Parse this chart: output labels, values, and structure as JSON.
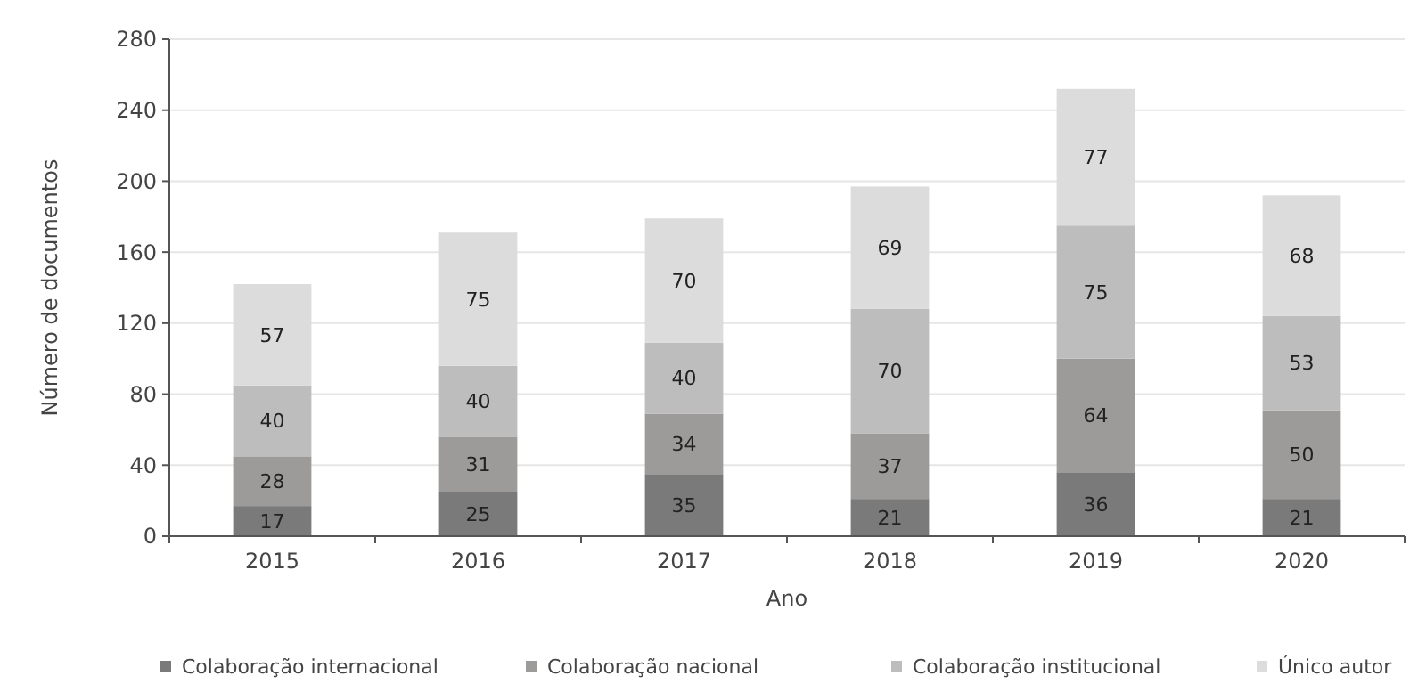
{
  "chart_data": {
    "type": "bar",
    "stacked": true,
    "xlabel": "Ano",
    "ylabel": "Número de documentos",
    "categories": [
      "2015",
      "2016",
      "2017",
      "2018",
      "2019",
      "2020"
    ],
    "series": [
      {
        "name": "Colaboração internacional",
        "color": "#7a7a7a",
        "values": [
          17,
          25,
          35,
          21,
          36,
          21
        ]
      },
      {
        "name": "Colaboração nacional",
        "color": "#9d9b99",
        "values": [
          28,
          31,
          34,
          37,
          64,
          50
        ]
      },
      {
        "name": "Colaboração institucional",
        "color": "#bebdbd",
        "values": [
          40,
          40,
          40,
          70,
          75,
          53
        ]
      },
      {
        "name": "Único autor",
        "color": "#dcdcdc",
        "values": [
          57,
          75,
          70,
          69,
          77,
          68
        ]
      }
    ],
    "ylim": [
      0,
      280
    ],
    "yticks": [
      0,
      40,
      80,
      120,
      160,
      200,
      240,
      280
    ],
    "grid": "y",
    "legend": "bottom",
    "data_labels": true
  }
}
